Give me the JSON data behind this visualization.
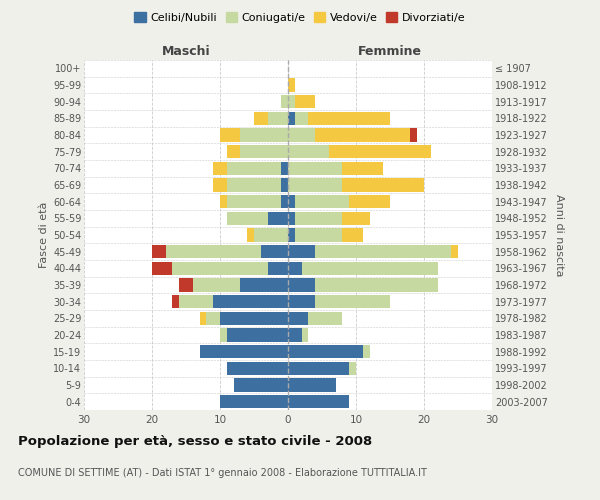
{
  "age_groups": [
    "0-4",
    "5-9",
    "10-14",
    "15-19",
    "20-24",
    "25-29",
    "30-34",
    "35-39",
    "40-44",
    "45-49",
    "50-54",
    "55-59",
    "60-64",
    "65-69",
    "70-74",
    "75-79",
    "80-84",
    "85-89",
    "90-94",
    "95-99",
    "100+"
  ],
  "birth_years": [
    "2003-2007",
    "1998-2002",
    "1993-1997",
    "1988-1992",
    "1983-1987",
    "1978-1982",
    "1973-1977",
    "1968-1972",
    "1963-1967",
    "1958-1962",
    "1953-1957",
    "1948-1952",
    "1943-1947",
    "1938-1942",
    "1933-1937",
    "1928-1932",
    "1923-1927",
    "1918-1922",
    "1913-1917",
    "1908-1912",
    "≤ 1907"
  ],
  "maschi": {
    "celibi": [
      10,
      8,
      9,
      13,
      9,
      10,
      11,
      7,
      3,
      4,
      0,
      3,
      1,
      1,
      1,
      0,
      0,
      0,
      0,
      0,
      0
    ],
    "coniugati": [
      0,
      0,
      0,
      0,
      1,
      2,
      5,
      7,
      14,
      14,
      5,
      6,
      8,
      8,
      8,
      7,
      7,
      3,
      1,
      0,
      0
    ],
    "vedovi": [
      0,
      0,
      0,
      0,
      0,
      1,
      0,
      0,
      0,
      0,
      1,
      0,
      1,
      2,
      2,
      2,
      3,
      2,
      0,
      0,
      0
    ],
    "divorziati": [
      0,
      0,
      0,
      0,
      0,
      0,
      1,
      2,
      3,
      2,
      0,
      0,
      0,
      0,
      0,
      0,
      0,
      0,
      0,
      0,
      0
    ]
  },
  "femmine": {
    "nubili": [
      9,
      7,
      9,
      11,
      2,
      3,
      4,
      4,
      2,
      4,
      1,
      1,
      1,
      0,
      0,
      0,
      0,
      1,
      0,
      0,
      0
    ],
    "coniugate": [
      0,
      0,
      1,
      1,
      1,
      5,
      11,
      18,
      20,
      20,
      7,
      7,
      8,
      8,
      8,
      6,
      4,
      2,
      1,
      0,
      0
    ],
    "vedove": [
      0,
      0,
      0,
      0,
      0,
      0,
      0,
      0,
      0,
      1,
      3,
      4,
      6,
      12,
      6,
      15,
      14,
      12,
      3,
      1,
      0
    ],
    "divorziate": [
      0,
      0,
      0,
      0,
      0,
      0,
      0,
      0,
      0,
      0,
      0,
      0,
      0,
      0,
      0,
      0,
      1,
      0,
      0,
      0,
      0
    ]
  },
  "colors": {
    "celibi_nubili": "#3d6fa0",
    "coniugati": "#c5d9a0",
    "vedovi": "#f5c842",
    "divorziati": "#c0392b"
  },
  "xlim": 30,
  "title": "Popolazione per età, sesso e stato civile - 2008",
  "subtitle": "COMUNE DI SETTIME (AT) - Dati ISTAT 1° gennaio 2008 - Elaborazione TUTTITALIA.IT",
  "ylabel_left": "Fasce di età",
  "ylabel_right": "Anni di nascita",
  "xlabel_maschi": "Maschi",
  "xlabel_femmine": "Femmine",
  "bg_color": "#f0f0eb",
  "plot_bg_color": "#ffffff",
  "grid_color": "#cccccc"
}
